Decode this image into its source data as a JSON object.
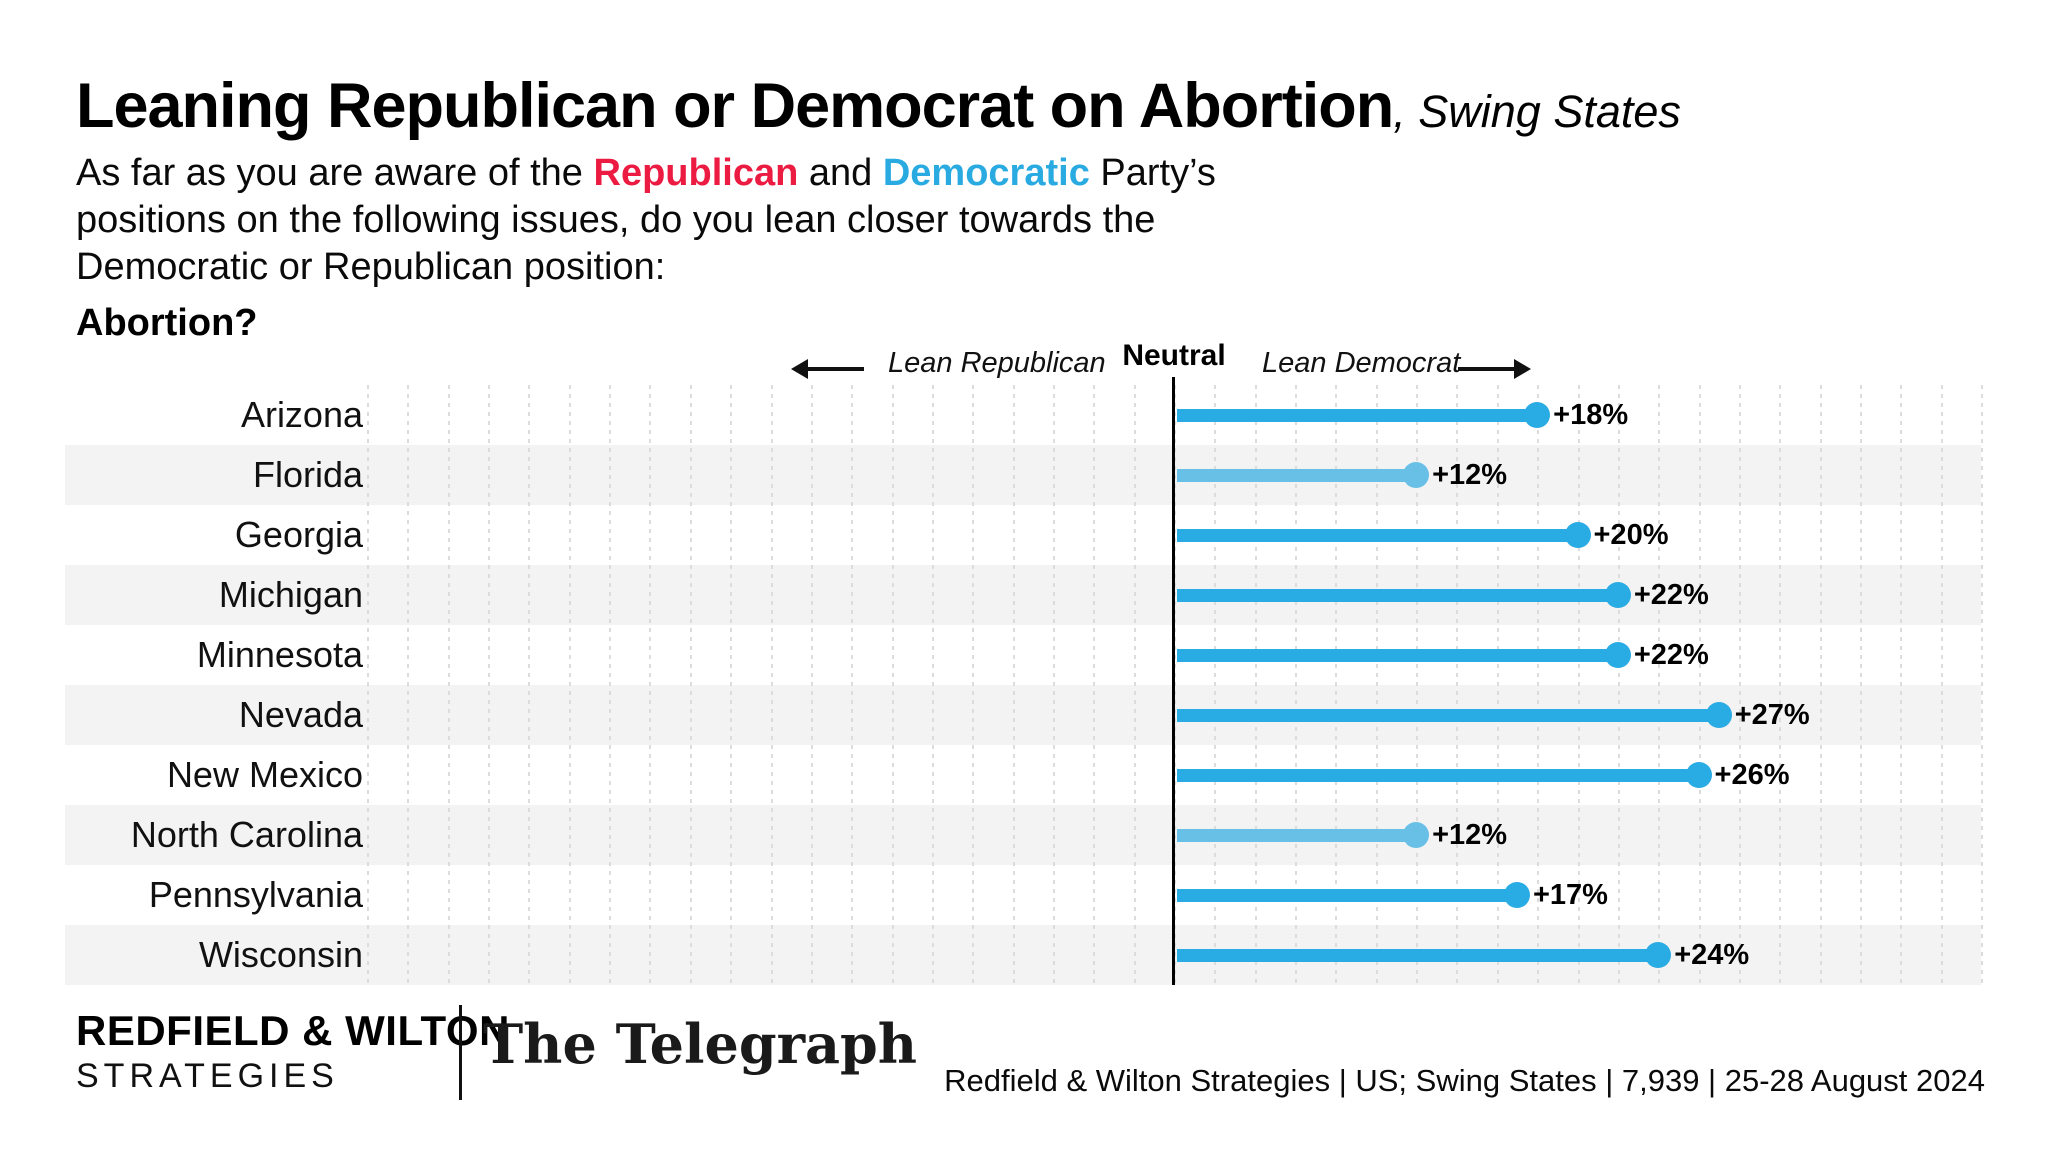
{
  "colors": {
    "bar_blue": "#29ABE3",
    "bar_light_blue": "#69C0E7",
    "republican_red": "#EC1B42",
    "democrat_blue": "#29ABE2",
    "row_stripe": "#F3F3F3",
    "gridline": "#DCDCDC",
    "axis_black": "#000000"
  },
  "header": {
    "title_main": "Leaning Republican or Democrat on Abortion",
    "title_suffix": ", Swing States",
    "subtitle": {
      "line1_pre": "As far as you are aware of the ",
      "republican": "Republican",
      "line1_mid": " and ",
      "democratic": "Democratic",
      "line1_post": " Party’s",
      "line2": "positions on the following issues, do you lean closer towards the",
      "line3": "Democratic or Republican position:"
    },
    "question": "Abortion?"
  },
  "legend": {
    "left_label": "Lean Republican",
    "center_label": "Neutral",
    "right_label": "Lean Democrat"
  },
  "chart_data": {
    "type": "bar",
    "subtype": "horizontal-lollipop-diverging",
    "title": "Leaning Republican or Democrat on Abortion, Swing States",
    "categories": [
      "Arizona",
      "Florida",
      "Georgia",
      "Michigan",
      "Minnesota",
      "Nevada",
      "New Mexico",
      "North Carolina",
      "Pennsylvania",
      "Wisconsin"
    ],
    "values": [
      18,
      12,
      20,
      22,
      22,
      27,
      26,
      12,
      17,
      24
    ],
    "value_labels": [
      "+18%",
      "+12%",
      "+20%",
      "+22%",
      "+22%",
      "+27%",
      "+26%",
      "+12%",
      "+17%",
      "+24%"
    ],
    "value_meaning": "positive = Lean Democrat, negative = Lean Republican",
    "bar_shades": [
      "dark",
      "light",
      "dark",
      "dark",
      "dark",
      "dark",
      "dark",
      "light",
      "dark",
      "dark"
    ],
    "axis": {
      "center_label": "Neutral",
      "left_direction": "Lean Republican",
      "right_direction": "Lean Democrat",
      "xlim": [
        -40,
        40
      ],
      "gridline_step_pct": 2
    },
    "grid": true,
    "legend_position": "top",
    "row_striping": "alternate"
  },
  "footer": {
    "brand_line1": "REDFIELD & WILTON",
    "brand_line2": "STRATEGIES",
    "partner_logo": "The Telegraph",
    "source_line": "Redfield & Wilton Strategies | US; Swing States | 7,939 | 25-28 August 2024"
  }
}
